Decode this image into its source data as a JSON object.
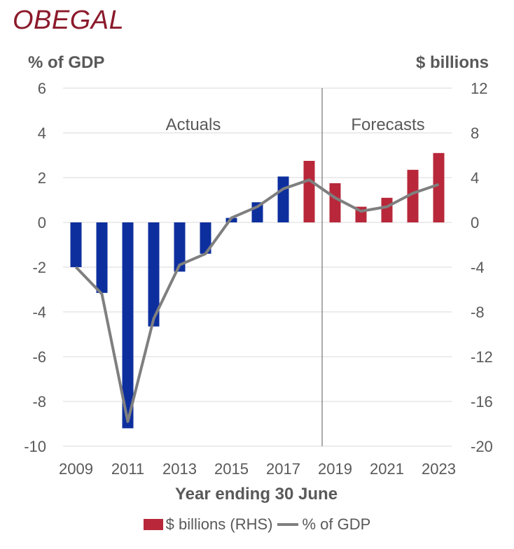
{
  "title": "OBEGAL",
  "chart_data": {
    "type": "bar",
    "x": [
      2009,
      2010,
      2011,
      2012,
      2013,
      2014,
      2015,
      2016,
      2017,
      2018,
      2019,
      2020,
      2021,
      2022,
      2023
    ],
    "x_tick_labels": [
      "2009",
      "2011",
      "2013",
      "2015",
      "2017",
      "2019",
      "2021",
      "2023"
    ],
    "xlabel": "Year ending 30 June",
    "y_left_label": "% of GDP",
    "y_right_label": "$ billions",
    "y_left_lim": [
      -10,
      6
    ],
    "y_right_lim": [
      -20,
      12
    ],
    "y_left_ticks": [
      6,
      4,
      2,
      0,
      -2,
      -4,
      -6,
      -8,
      -10
    ],
    "y_right_ticks": [
      12,
      8,
      4,
      0,
      -4,
      -8,
      -12,
      -16,
      -20
    ],
    "series": [
      {
        "name": "$ billions (RHS)",
        "axis": "right",
        "type": "bar",
        "values": [
          -4.0,
          -6.3,
          -18.4,
          -9.3,
          -4.4,
          -2.8,
          0.4,
          1.8,
          4.1,
          5.5,
          3.5,
          1.4,
          2.2,
          4.7,
          6.2
        ]
      },
      {
        "name": "% of GDP",
        "axis": "left",
        "type": "line",
        "values": [
          -2.0,
          -3.2,
          -8.9,
          -4.3,
          -1.9,
          -1.4,
          0.2,
          0.7,
          1.5,
          1.9,
          1.1,
          0.5,
          0.7,
          1.3,
          1.7
        ]
      }
    ],
    "divider_after": 2018,
    "annotations": [
      "Actuals",
      "Forecasts"
    ],
    "grid": true
  },
  "legend": {
    "bar_label": "$ billions (RHS)",
    "line_label": "% of GDP"
  },
  "colors": {
    "actual_bar": "#0d2f9e",
    "forecast_bar": "#b8283a",
    "line": "#7f7f7f",
    "grid": "#d9d9d9",
    "divider": "#595959"
  }
}
